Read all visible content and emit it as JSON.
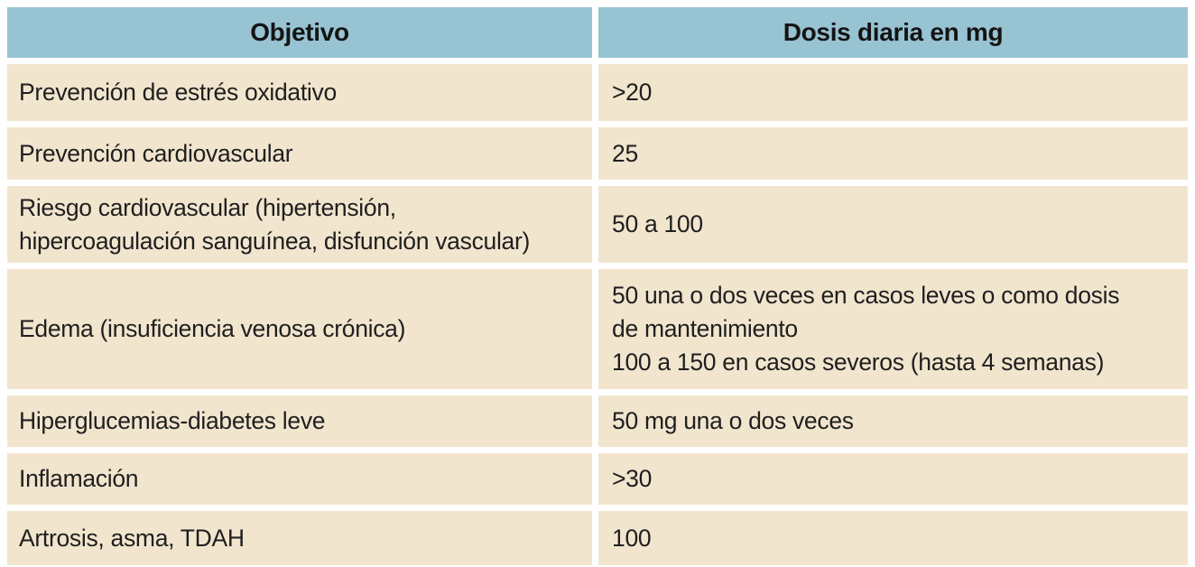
{
  "table": {
    "title_semantic": "Tabla de dosis diaria por objetivo terapéutico",
    "colors": {
      "header_bg": "#98C3D2",
      "row_bg": "#F2E5CE",
      "gutter": "#FFFFFF",
      "text": "#1F1F1F"
    },
    "columns": [
      {
        "label": "Objetivo"
      },
      {
        "label": "Dosis diaria en mg"
      }
    ],
    "rows": [
      {
        "objetivo": "Prevención de estrés oxidativo",
        "dosis": ">20"
      },
      {
        "objetivo": "Prevención cardiovascular",
        "dosis": "25"
      },
      {
        "objetivo": "Riesgo cardiovascular (hipertensión,\nhipercoagulación sanguínea, disfunción vascular)",
        "dosis": "50 a 100"
      },
      {
        "objetivo": "Edema (insuficiencia venosa crónica)",
        "dosis": "50 una o dos veces en casos leves o como dosis\nde mantenimiento\n100 a 150 en casos severos (hasta 4 semanas)"
      },
      {
        "objetivo": "Hiperglucemias-diabetes leve",
        "dosis": "50 mg una o dos veces"
      },
      {
        "objetivo": "Inflamación",
        "dosis": ">30"
      },
      {
        "objetivo": "Artrosis, asma, TDAH",
        "dosis": "100"
      }
    ]
  }
}
